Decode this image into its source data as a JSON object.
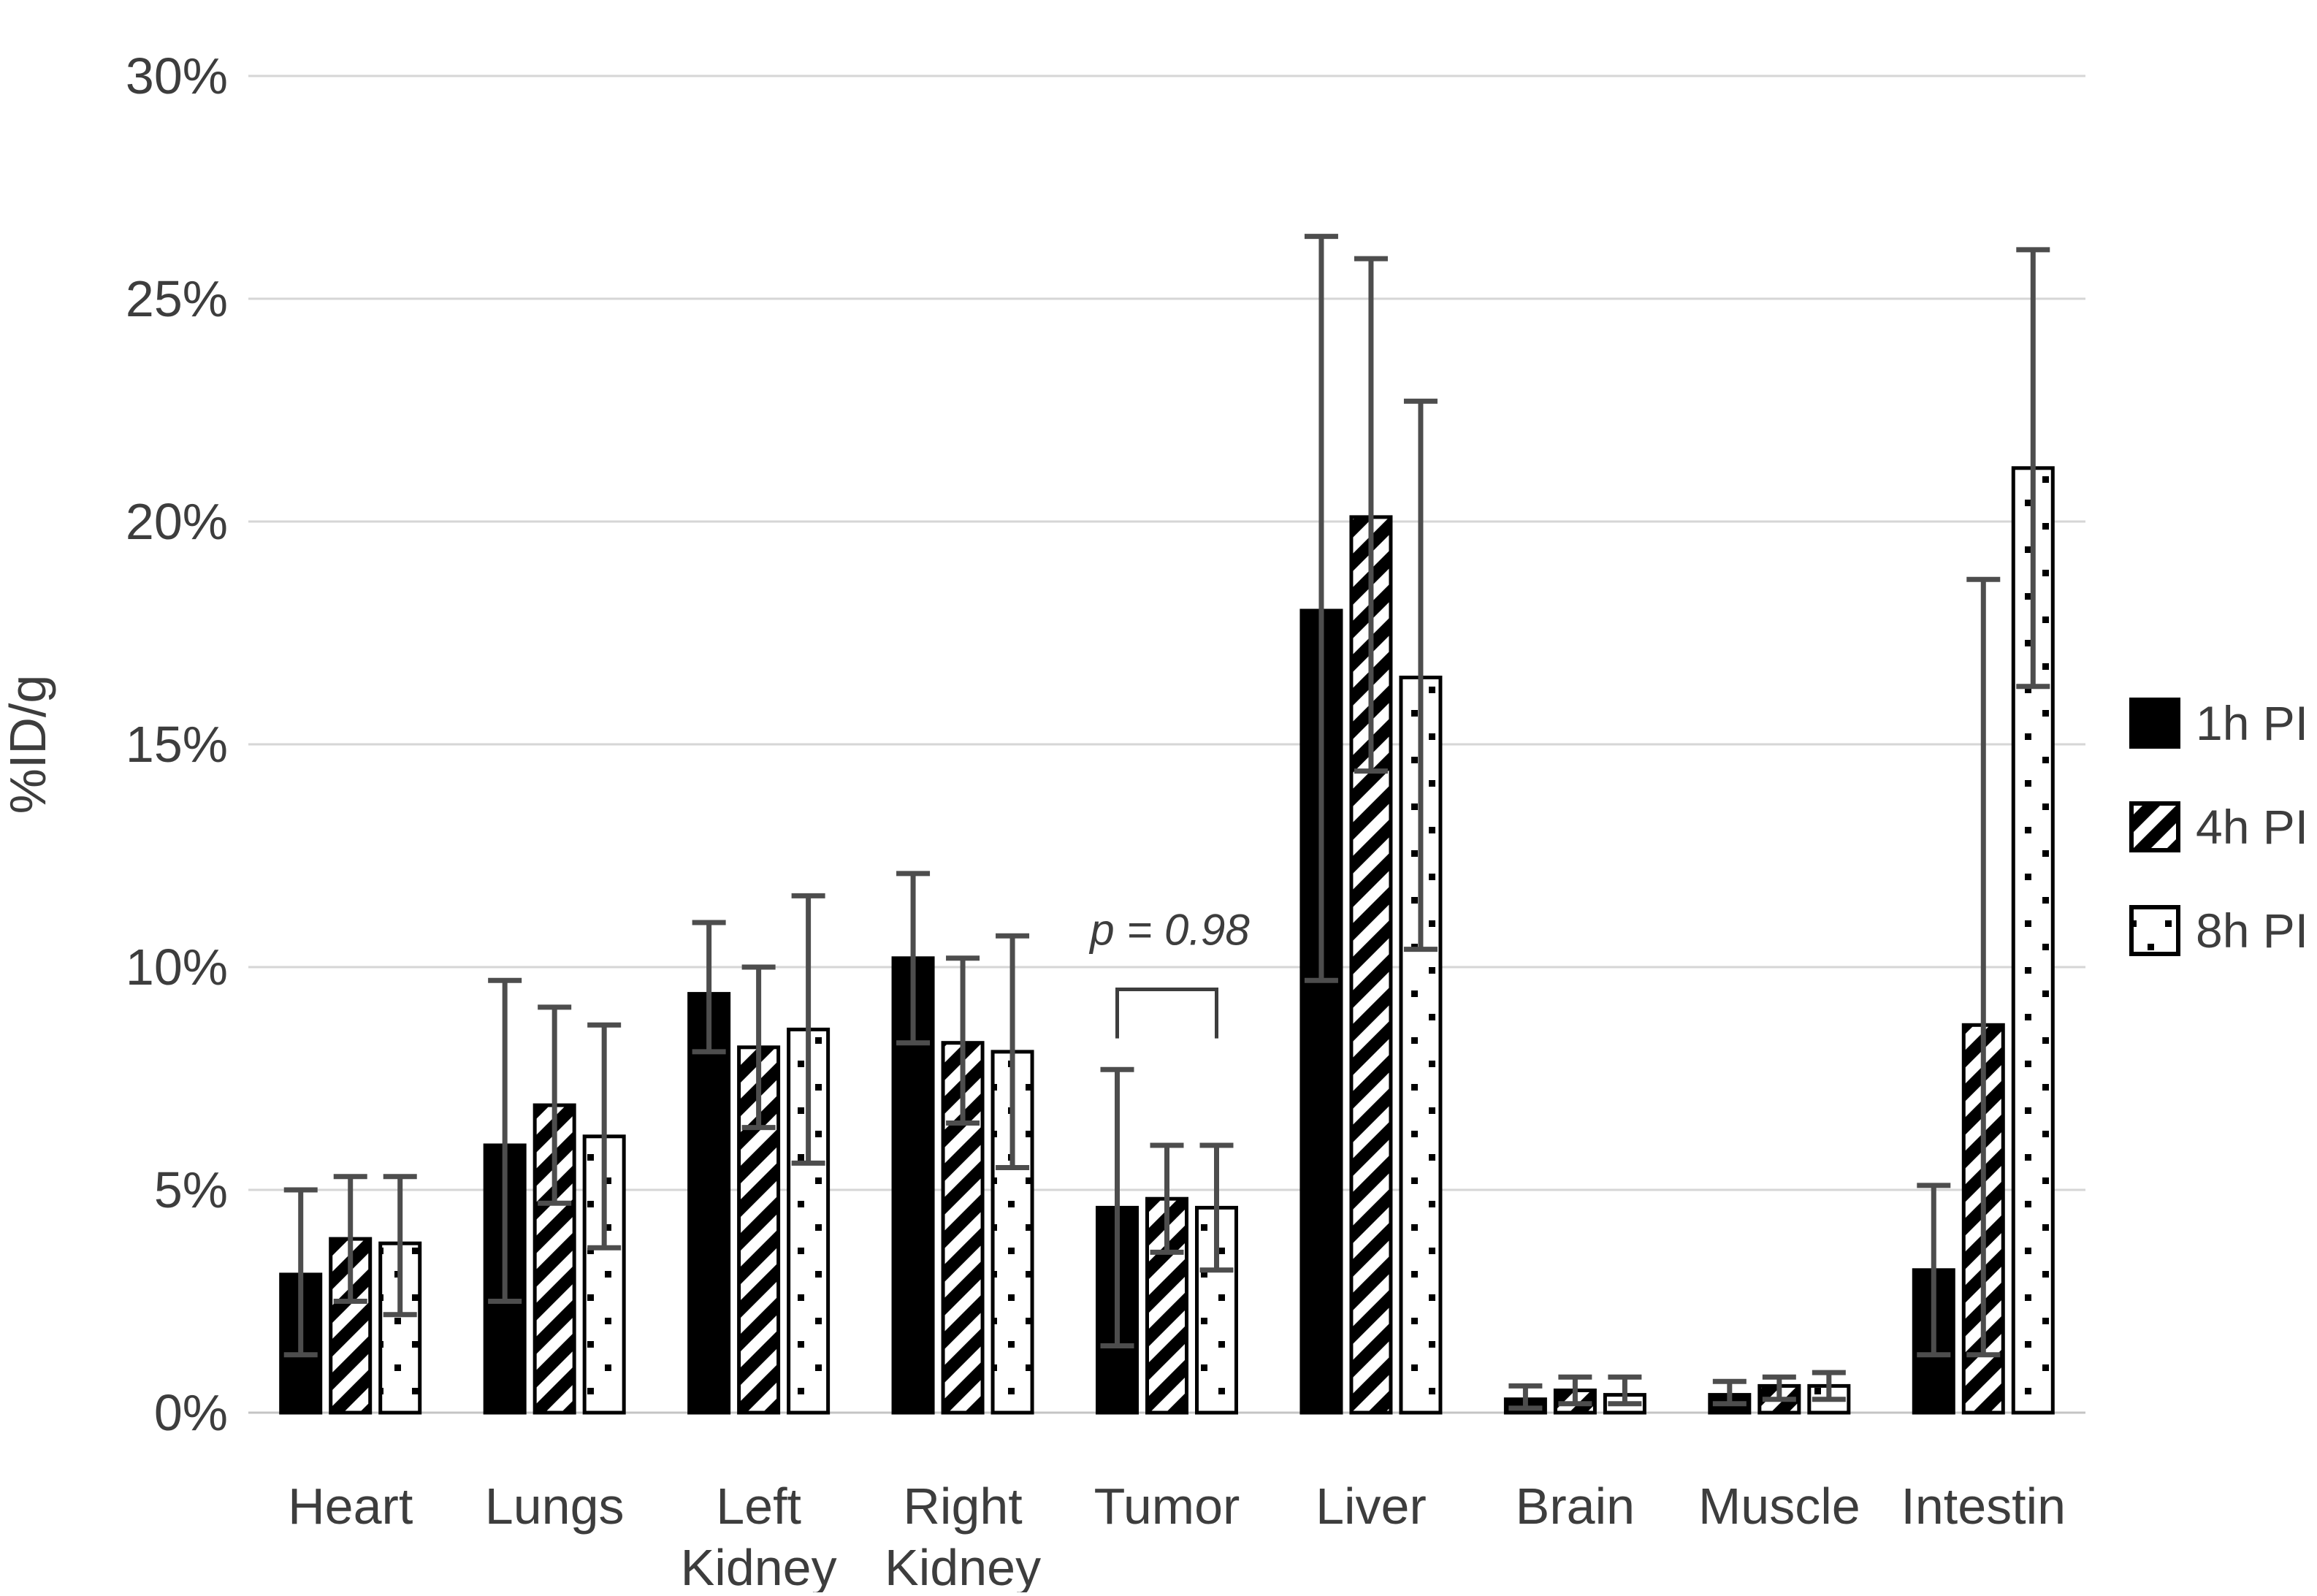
{
  "figure": {
    "background": "#ffffff",
    "ylabel": "%ID/g",
    "ytick_labels": [
      "0%",
      "5%",
      "10%",
      "15%",
      "20%",
      "25%",
      "30%"
    ]
  },
  "legend": {
    "items": [
      {
        "label": "1h PI",
        "swatch": "solid-black-square"
      },
      {
        "label": "4h PI",
        "swatch": "diagonal-hatch-square"
      },
      {
        "label": "8h PI",
        "swatch": "dotted-square"
      }
    ]
  },
  "annotation": {
    "text": "p = 0.98",
    "target_category": "Tumor",
    "bracket_top_value": 9.5,
    "bracket_leg_value": 8.4,
    "text_value": 10.5
  },
  "chart_data": {
    "type": "bar",
    "title": "",
    "xlabel": "",
    "ylabel": "%ID/g",
    "ylim": [
      0,
      30
    ],
    "ytick_step": 5,
    "grid": true,
    "legend_position": "right",
    "categories": [
      "Heart",
      "Lungs",
      "Left Kidney",
      "Right Kidney",
      "Tumor",
      "Liver",
      "Brain",
      "Muscle",
      "Intestin"
    ],
    "series": [
      {
        "name": "1h PI",
        "pattern": "solid",
        "values": [
          3.1,
          6.0,
          9.4,
          10.2,
          4.6,
          18.0,
          0.3,
          0.4,
          3.2
        ],
        "whisker_low": [
          1.3,
          2.5,
          8.1,
          8.3,
          1.5,
          9.7,
          0.1,
          0.2,
          1.3
        ],
        "whisker_high": [
          5.0,
          9.7,
          11.0,
          12.1,
          7.7,
          26.4,
          0.6,
          0.7,
          5.1
        ]
      },
      {
        "name": "4h PI",
        "pattern": "diagonal-hatch",
        "values": [
          3.9,
          6.9,
          8.2,
          8.3,
          4.8,
          20.1,
          0.5,
          0.6,
          8.7
        ],
        "whisker_low": [
          2.5,
          4.7,
          6.4,
          6.5,
          3.6,
          14.4,
          0.2,
          0.3,
          1.3
        ],
        "whisker_high": [
          5.3,
          9.1,
          10.0,
          10.2,
          6.0,
          25.9,
          0.8,
          0.8,
          18.7
        ]
      },
      {
        "name": "8h PI",
        "pattern": "dotted",
        "values": [
          3.8,
          6.2,
          8.6,
          8.1,
          4.6,
          16.5,
          0.4,
          0.6,
          21.2
        ],
        "whisker_low": [
          2.2,
          3.7,
          5.6,
          5.5,
          3.2,
          10.4,
          0.2,
          0.3,
          16.3
        ],
        "whisker_high": [
          5.3,
          8.7,
          11.6,
          10.7,
          6.0,
          22.7,
          0.8,
          0.9,
          26.1
        ]
      }
    ]
  },
  "colors": {
    "text": "#3d3d3d",
    "gridline": "#d6d6d6",
    "baseline": "#c4c4c4",
    "bar_black": "#000000",
    "bar_white": "#ffffff",
    "error_bar": "#4d4d4d",
    "background": "#ffffff"
  }
}
